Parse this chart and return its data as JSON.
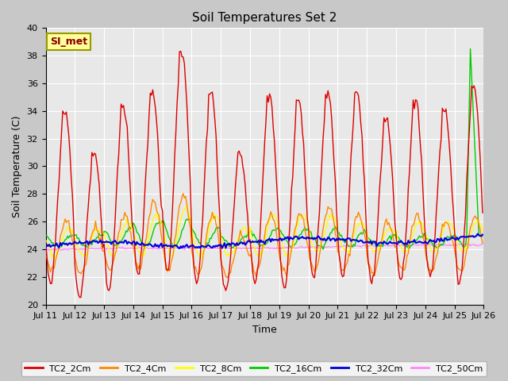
{
  "title": "Soil Temperatures Set 2",
  "xlabel": "Time",
  "ylabel": "Soil Temperature (C)",
  "ylim": [
    20,
    40
  ],
  "bg_color": "#c8c8c8",
  "plot_bg": "#e8e8e8",
  "annotation_text": "SI_met",
  "annotation_bg": "#ffff99",
  "annotation_border": "#999900",
  "annotation_text_color": "#880000",
  "series_colors": {
    "TC2_2Cm": "#dd0000",
    "TC2_4Cm": "#ff8800",
    "TC2_8Cm": "#ffff00",
    "TC2_16Cm": "#00cc00",
    "TC2_32Cm": "#0000dd",
    "TC2_50Cm": "#ff88ff"
  },
  "x_tick_labels": [
    "Jul 11",
    "Jul 12",
    "Jul 13",
    "Jul 14",
    "Jul 15",
    "Jul 16",
    "Jul 17",
    "Jul 18",
    "Jul 19",
    "Jul 20",
    "Jul 21",
    "Jul 22",
    "Jul 23",
    "Jul 24",
    "Jul 25",
    "Jul 26"
  ],
  "title_fontsize": 11,
  "axis_fontsize": 9,
  "tick_fontsize": 8,
  "legend_fontsize": 8
}
